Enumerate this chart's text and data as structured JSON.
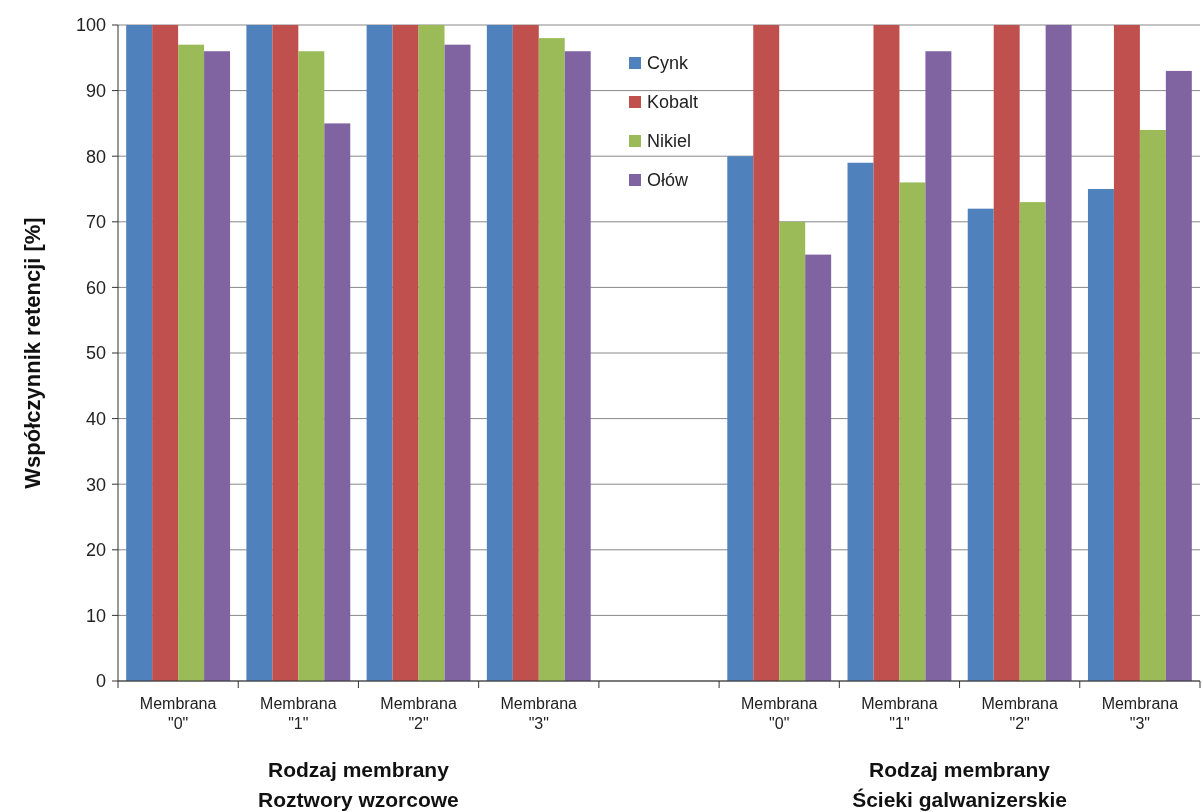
{
  "chart_data": {
    "type": "bar",
    "ylabel": "Współczynnik retencji [%]",
    "categories": [
      "Membrana\n\"0\"",
      "Membrana\n\"1\"",
      "Membrana\n\"2\"",
      "Membrana\n\"3\"",
      null,
      "Membrana\n\"0\"",
      "Membrana\n\"1\"",
      "Membrana\n\"2\"",
      "Membrana\n\"3\""
    ],
    "series": [
      {
        "name": "Cynk",
        "color": "#4f81bd",
        "values": [
          100,
          100,
          100,
          100,
          null,
          80,
          79,
          72,
          75
        ]
      },
      {
        "name": "Kobalt",
        "color": "#c0504d",
        "values": [
          100,
          100,
          100,
          100,
          null,
          100,
          100,
          100,
          100
        ]
      },
      {
        "name": "Nikiel",
        "color": "#9bbb59",
        "values": [
          97,
          96,
          100,
          98,
          null,
          70,
          76,
          73,
          84
        ]
      },
      {
        "name": "Ołów",
        "color": "#8064a2",
        "values": [
          96,
          85,
          97,
          96,
          null,
          65,
          96,
          100,
          93
        ]
      }
    ],
    "ylim": [
      0,
      100
    ],
    "yticks": [
      0,
      10,
      20,
      30,
      40,
      50,
      60,
      70,
      80,
      90,
      100
    ],
    "grid": "y",
    "legend": "top",
    "annotations": [
      "Rodzaj membrany\nRoztwory wzorcowe",
      "Rodzaj membrany\nŚcieki galwanizerskie"
    ]
  }
}
